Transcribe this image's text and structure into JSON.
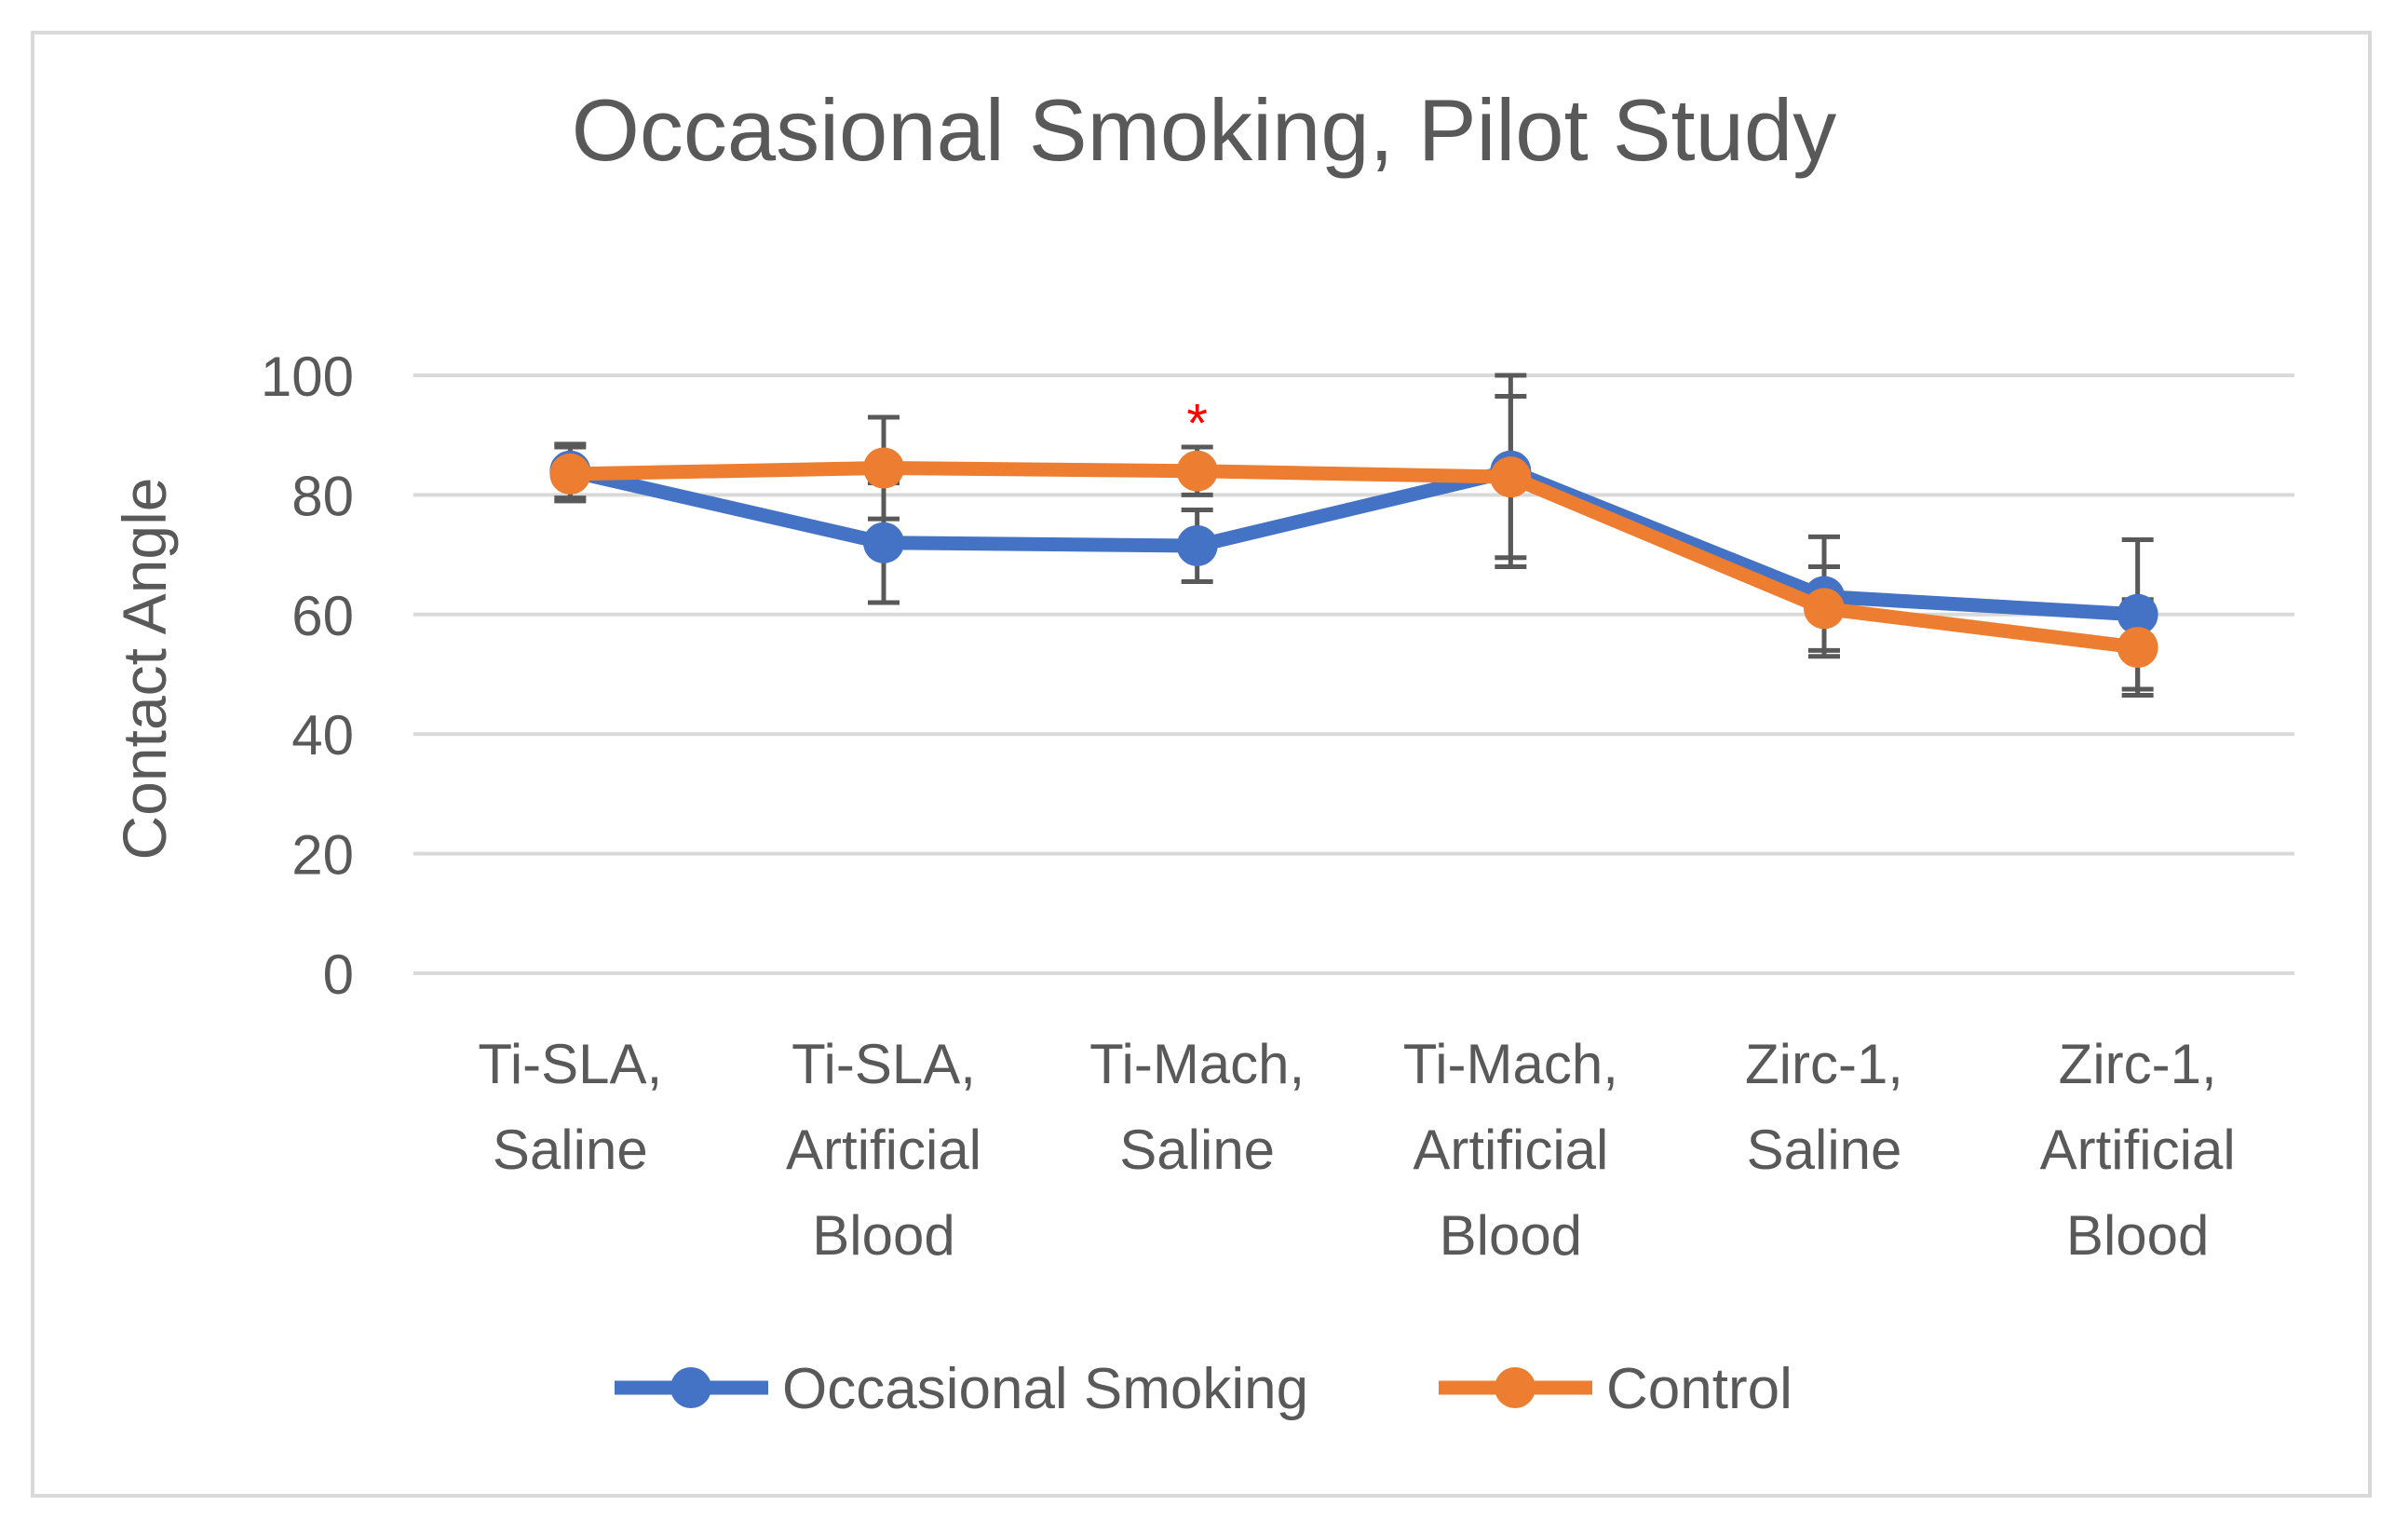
{
  "chart_data": {
    "type": "line",
    "title": "Occasional Smoking, Pilot Study",
    "xlabel": "",
    "ylabel": "Contact Angle",
    "ylim": [
      0,
      100
    ],
    "yticks": [
      "0",
      "20",
      "40",
      "60",
      "80",
      "100"
    ],
    "grid": true,
    "legend_position": "bottom",
    "categories": [
      [
        "Ti-SLA,",
        "Saline"
      ],
      [
        "Ti-SLA,",
        "Artificial",
        "Blood"
      ],
      [
        "Ti-Mach,",
        "Saline"
      ],
      [
        "Ti-Mach,",
        "Artificial",
        "Blood"
      ],
      [
        "Zirc-1,",
        "Saline"
      ],
      [
        "Zirc-1,",
        "Artificial",
        "Blood"
      ]
    ],
    "series": [
      {
        "name": "Occasional Smoking",
        "color": "#4472c4",
        "values": [
          84,
          72,
          71.5,
          84,
          63,
          60
        ],
        "error": [
          4.5,
          10,
          6,
          16,
          10,
          12.5
        ]
      },
      {
        "name": "Control",
        "color": "#ed7d31",
        "values": [
          83.5,
          84.5,
          84,
          83,
          61,
          54.5
        ],
        "error": [
          4.5,
          8.5,
          4,
          13.5,
          7,
          8
        ]
      }
    ],
    "annotations": [
      {
        "text": "*",
        "category_index": 2,
        "y": 93.5,
        "color": "#ff0000"
      }
    ]
  }
}
